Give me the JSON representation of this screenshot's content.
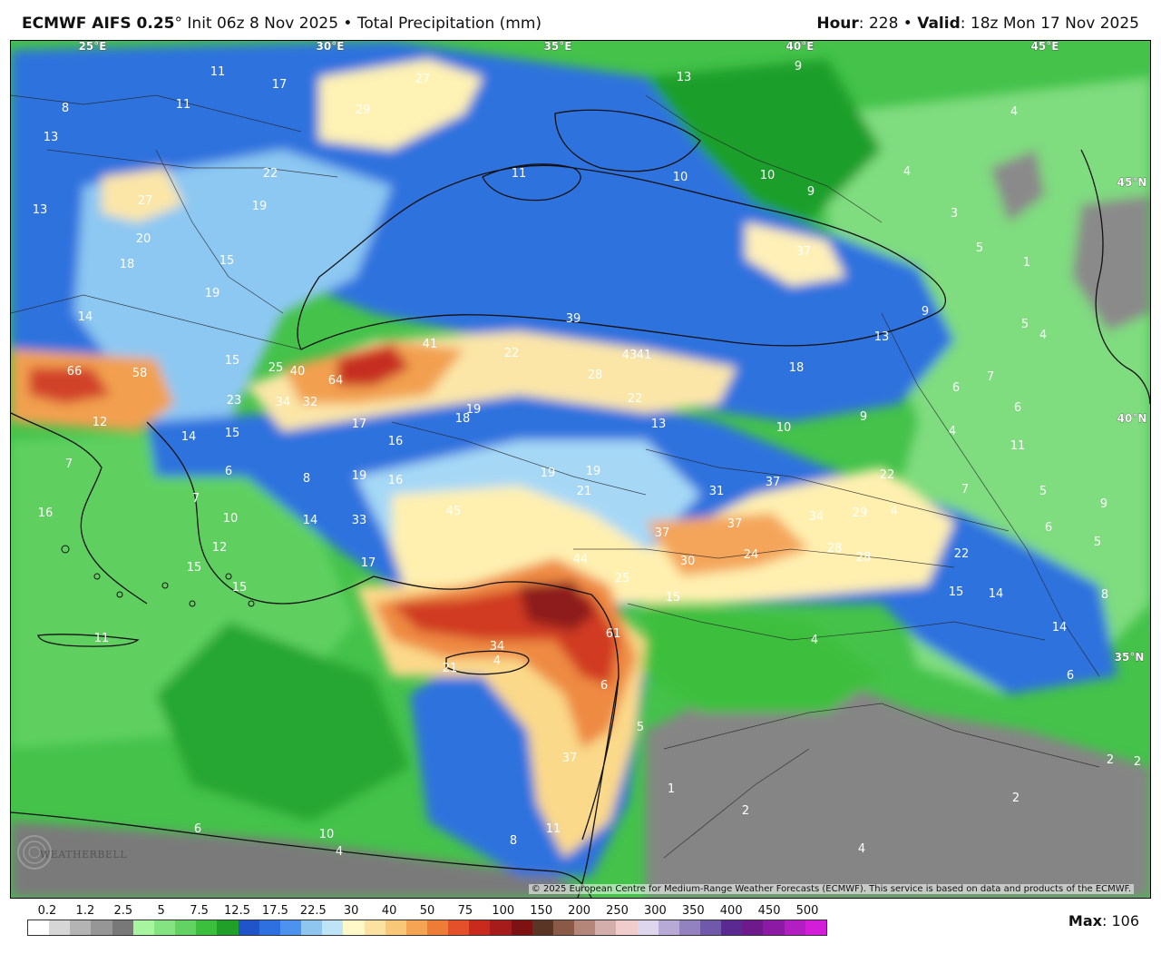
{
  "header": {
    "model": "ECMWF AIFS 0.25",
    "degree": "°",
    "run": "Init 06z 8 Nov 2025",
    "bullet": "•",
    "product": "Total Precipitation (mm)",
    "hour_label": "Hour",
    "hour_value": "228",
    "valid_label": "Valid",
    "valid_value": "18z Mon 17 Nov 2025"
  },
  "map": {
    "copyright": "© 2025 European Centre for Medium-Range Weather Forecasts (ECMWF). This service is based on data and products of the ECMWF.",
    "logo_text": "WEATHERBELL",
    "longitude_labels": [
      "25°E",
      "30°E",
      "35°E",
      "40°E",
      "45°E"
    ],
    "latitude_labels": [
      "45°N",
      "40°N",
      "35°N"
    ],
    "precip_values": [
      "11",
      "8",
      "11",
      "17",
      "27",
      "29",
      "13",
      "9",
      "4",
      "13",
      "13",
      "27",
      "22",
      "19",
      "11",
      "10",
      "10",
      "9",
      "4",
      "3",
      "20",
      "18",
      "15",
      "19",
      "37",
      "5",
      "1",
      "14",
      "39",
      "9",
      "5",
      "4",
      "66",
      "58",
      "15",
      "25",
      "40",
      "64",
      "41",
      "22",
      "43",
      "41",
      "28",
      "13",
      "18",
      "7",
      "6",
      "23",
      "34",
      "32",
      "17",
      "19",
      "18",
      "22",
      "6",
      "12",
      "14",
      "15",
      "16",
      "13",
      "10",
      "9",
      "4",
      "7",
      "6",
      "8",
      "11",
      "19",
      "16",
      "19",
      "19",
      "21",
      "31",
      "37",
      "22",
      "7",
      "16",
      "7",
      "10",
      "14",
      "33",
      "45",
      "37",
      "34",
      "29",
      "4",
      "5",
      "9",
      "6",
      "5",
      "12",
      "15",
      "17",
      "44",
      "37",
      "30",
      "24",
      "28",
      "28",
      "22",
      "8",
      "15",
      "25",
      "15",
      "15",
      "14",
      "11",
      "61",
      "4",
      "14",
      "34",
      "21",
      "4",
      "6",
      "5",
      "1",
      "2",
      "2",
      "4",
      "6",
      "10",
      "4",
      "8",
      "11",
      "2",
      "2",
      "37",
      "6"
    ],
    "colors": {
      "dark_gray": "#6e6e6e",
      "mid_gray": "#8e8e8e",
      "light_green": "#8fe58a",
      "green": "#4fcd4f",
      "dark_green": "#1f9f2c",
      "dark_blue": "#1f5bd0",
      "blue": "#3a82e6",
      "light_blue": "#8dc8f2",
      "pale_blue": "#c4e8fa",
      "pale_yellow": "#fff2b4",
      "yellow": "#fbd98a",
      "orange": "#f4a55a",
      "dark_orange": "#ea6a32",
      "red": "#c62d20",
      "dark_red": "#8e1f1b"
    }
  },
  "legend": {
    "labels": [
      "0.2",
      "1.2",
      "2.5",
      "5",
      "7.5",
      "12.5",
      "17.5",
      "22.5",
      "30",
      "40",
      "50",
      "75",
      "100",
      "150",
      "200",
      "250",
      "300",
      "350",
      "400",
      "450",
      "500"
    ],
    "colors": [
      "#ffffff",
      "#d6d6d6",
      "#b4b4b4",
      "#969696",
      "#787878",
      "#a8f5a0",
      "#86e382",
      "#62d262",
      "#3cbf3c",
      "#20a028",
      "#1f55c8",
      "#2f70e0",
      "#4d92ee",
      "#8ec6f0",
      "#bfe4f8",
      "#fff8c8",
      "#fbe2a0",
      "#f8c878",
      "#f4a452",
      "#ec7c36",
      "#e4502a",
      "#c82a1e",
      "#a61c1a",
      "#7e1212",
      "#5a3424",
      "#8a5a46",
      "#b4867a",
      "#d4aeaa",
      "#f0cccc",
      "#ded6ec",
      "#b8aad6",
      "#9282c0",
      "#7058aa",
      "#5a2a92",
      "#6e1a8c",
      "#8c1aa4",
      "#b21ec2",
      "#d21ed8"
    ]
  },
  "max": {
    "label": "Max",
    "value": "106"
  }
}
